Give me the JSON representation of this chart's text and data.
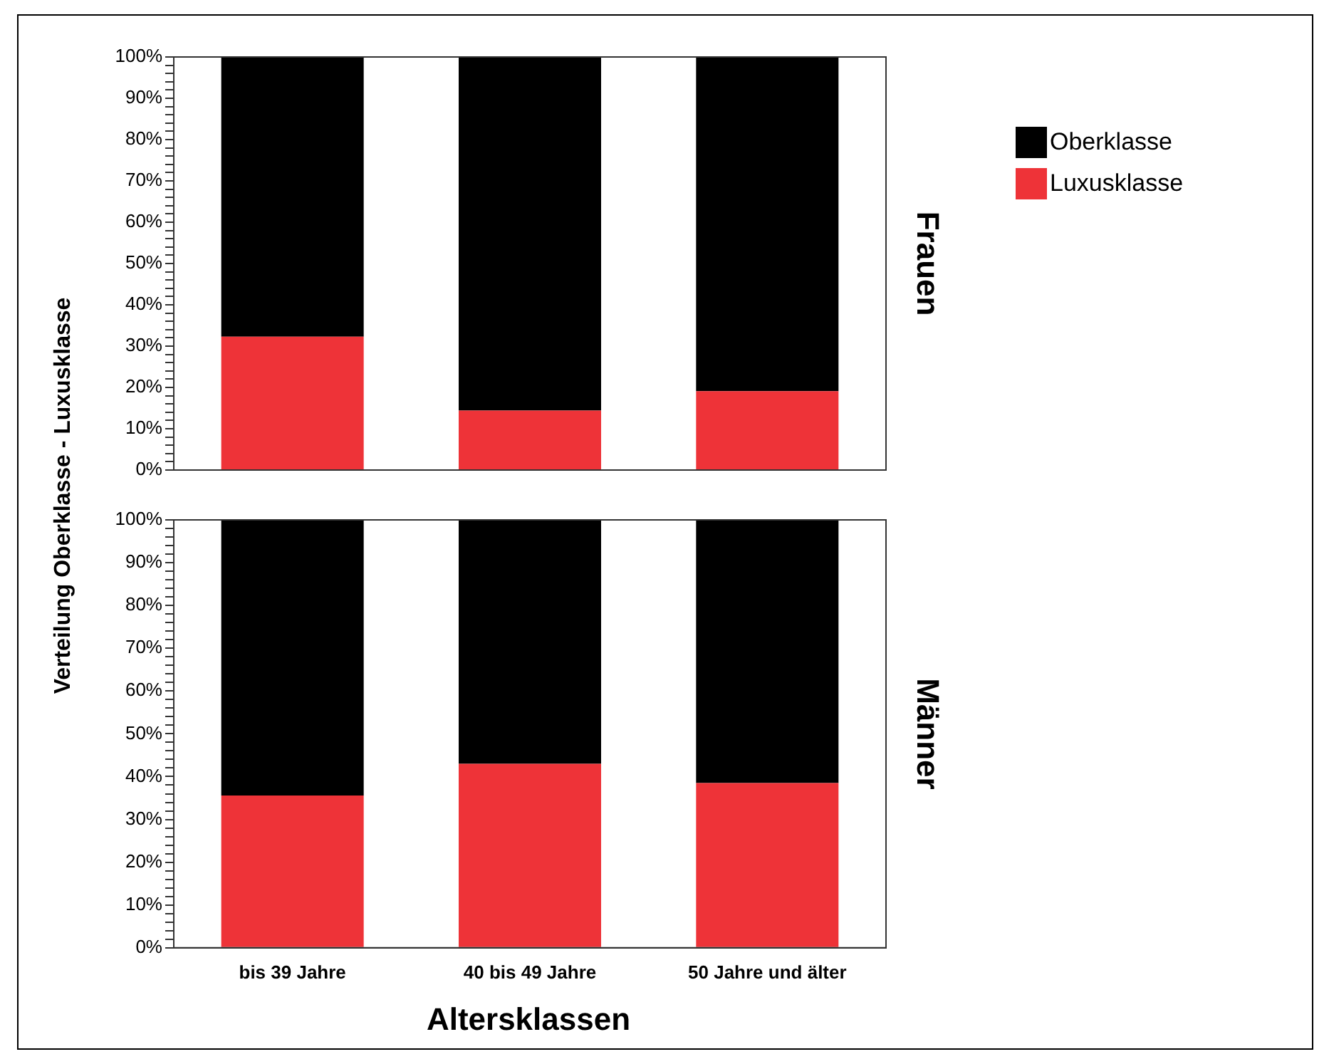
{
  "chart_data": [
    {
      "type": "bar",
      "stacked": true,
      "annotations": [
        "Frauen"
      ],
      "ylabel": "Verteilung Oberklasse - Luxusklasse",
      "categories": [
        null,
        null,
        null
      ],
      "series": [
        {
          "name": "Luxusklasse",
          "color": "#ee3338",
          "values": [
            32.3,
            14.4,
            19.1
          ]
        },
        {
          "name": "Oberklasse",
          "color": "#000000",
          "values": [
            67.7,
            85.6,
            80.9
          ]
        }
      ],
      "ylim": [
        0,
        100
      ],
      "yticks": [
        {
          "value": 0,
          "label": "0%"
        },
        {
          "value": 2,
          "label": null
        },
        {
          "value": 4,
          "label": null
        },
        {
          "value": 6,
          "label": null
        },
        {
          "value": 8,
          "label": null
        },
        {
          "value": 10,
          "label": "10%"
        },
        {
          "value": 12,
          "label": null
        },
        {
          "value": 14,
          "label": null
        },
        {
          "value": 16,
          "label": null
        },
        {
          "value": 18,
          "label": null
        },
        {
          "value": 20,
          "label": "20%"
        },
        {
          "value": 22,
          "label": null
        },
        {
          "value": 24,
          "label": null
        },
        {
          "value": 26,
          "label": null
        },
        {
          "value": 28,
          "label": null
        },
        {
          "value": 30,
          "label": "30%"
        },
        {
          "value": 32,
          "label": null
        },
        {
          "value": 34,
          "label": null
        },
        {
          "value": 36,
          "label": null
        },
        {
          "value": 38,
          "label": null
        },
        {
          "value": 40,
          "label": "40%"
        },
        {
          "value": 42,
          "label": null
        },
        {
          "value": 44,
          "label": null
        },
        {
          "value": 46,
          "label": null
        },
        {
          "value": 48,
          "label": null
        },
        {
          "value": 50,
          "label": "50%"
        },
        {
          "value": 52,
          "label": null
        },
        {
          "value": 54,
          "label": null
        },
        {
          "value": 56,
          "label": null
        },
        {
          "value": 58,
          "label": null
        },
        {
          "value": 60,
          "label": "60%"
        },
        {
          "value": 62,
          "label": null
        },
        {
          "value": 64,
          "label": null
        },
        {
          "value": 66,
          "label": null
        },
        {
          "value": 68,
          "label": null
        },
        {
          "value": 70,
          "label": "70%"
        },
        {
          "value": 72,
          "label": null
        },
        {
          "value": 74,
          "label": null
        },
        {
          "value": 76,
          "label": null
        },
        {
          "value": 78,
          "label": null
        },
        {
          "value": 80,
          "label": "80%"
        },
        {
          "value": 82,
          "label": null
        },
        {
          "value": 84,
          "label": null
        },
        {
          "value": 86,
          "label": null
        },
        {
          "value": 88,
          "label": null
        },
        {
          "value": 90,
          "label": "90%"
        },
        {
          "value": 92,
          "label": null
        },
        {
          "value": 94,
          "label": null
        },
        {
          "value": 96,
          "label": null
        },
        {
          "value": 98,
          "label": null
        },
        {
          "value": 100,
          "label": "100%"
        }
      ],
      "tick_labels": "y",
      "legend": "right",
      "grid": false
    },
    {
      "type": "bar",
      "stacked": true,
      "annotations": [
        "Männer"
      ],
      "xlabel": "Altersklassen",
      "categories": [
        "bis 39 Jahre",
        "40 bis 49 Jahre",
        "50 Jahre und älter"
      ],
      "series": [
        {
          "color": "#ee3338",
          "values": [
            35.6,
            43.0,
            38.5
          ]
        },
        {
          "color": "#000000",
          "values": [
            64.4,
            57.0,
            61.5
          ]
        }
      ],
      "ylim": [
        0,
        100
      ],
      "yticks": [
        {
          "value": 0,
          "label": "0%"
        },
        {
          "value": 2,
          "label": null
        },
        {
          "value": 4,
          "label": null
        },
        {
          "value": 6,
          "label": null
        },
        {
          "value": 8,
          "label": null
        },
        {
          "value": 10,
          "label": "10%"
        },
        {
          "value": 12,
          "label": null
        },
        {
          "value": 14,
          "label": null
        },
        {
          "value": 16,
          "label": null
        },
        {
          "value": 18,
          "label": null
        },
        {
          "value": 20,
          "label": "20%"
        },
        {
          "value": 22,
          "label": null
        },
        {
          "value": 24,
          "label": null
        },
        {
          "value": 26,
          "label": null
        },
        {
          "value": 28,
          "label": null
        },
        {
          "value": 30,
          "label": "30%"
        },
        {
          "value": 32,
          "label": null
        },
        {
          "value": 34,
          "label": null
        },
        {
          "value": 36,
          "label": null
        },
        {
          "value": 38,
          "label": null
        },
        {
          "value": 40,
          "label": "40%"
        },
        {
          "value": 42,
          "label": null
        },
        {
          "value": 44,
          "label": null
        },
        {
          "value": 46,
          "label": null
        },
        {
          "value": 48,
          "label": null
        },
        {
          "value": 50,
          "label": "50%"
        },
        {
          "value": 52,
          "label": null
        },
        {
          "value": 54,
          "label": null
        },
        {
          "value": 56,
          "label": null
        },
        {
          "value": 58,
          "label": null
        },
        {
          "value": 60,
          "label": "60%"
        },
        {
          "value": 62,
          "label": null
        },
        {
          "value": 64,
          "label": null
        },
        {
          "value": 66,
          "label": null
        },
        {
          "value": 68,
          "label": null
        },
        {
          "value": 70,
          "label": "70%"
        },
        {
          "value": 72,
          "label": null
        },
        {
          "value": 74,
          "label": null
        },
        {
          "value": 76,
          "label": null
        },
        {
          "value": 78,
          "label": null
        },
        {
          "value": 80,
          "label": "80%"
        },
        {
          "value": 82,
          "label": null
        },
        {
          "value": 84,
          "label": null
        },
        {
          "value": 86,
          "label": null
        },
        {
          "value": 88,
          "label": null
        },
        {
          "value": 90,
          "label": "90%"
        },
        {
          "value": 92,
          "label": null
        },
        {
          "value": 94,
          "label": null
        },
        {
          "value": 96,
          "label": null
        },
        {
          "value": 98,
          "label": null
        },
        {
          "value": 100,
          "label": "100%"
        }
      ],
      "grid": false
    }
  ]
}
